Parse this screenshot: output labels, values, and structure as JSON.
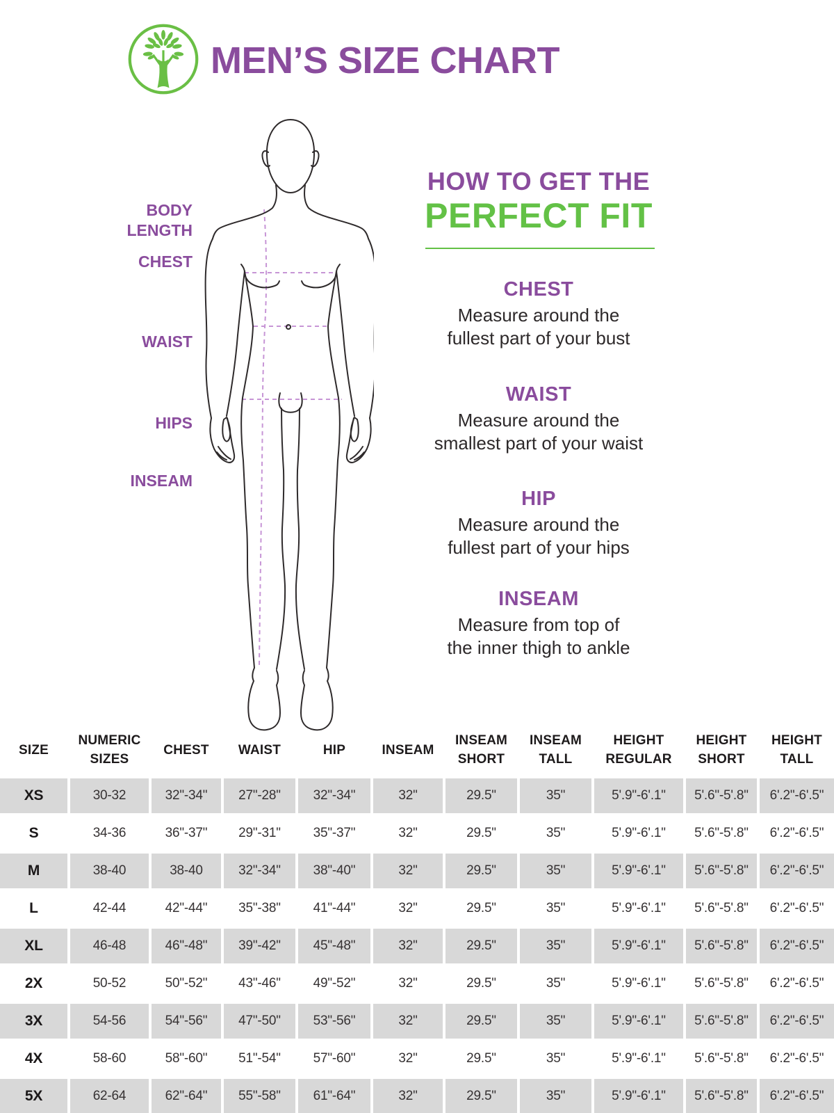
{
  "colors": {
    "purple": "#8a4c9d",
    "green": "#63c146",
    "logo_green": "#6abf45",
    "dashed_line": "#c795d6",
    "figure_stroke": "#2e2a2b",
    "row_gray": "#d8d8d8"
  },
  "header": {
    "logo_icon": "tree-icon",
    "title": "MEN’S SIZE CHART"
  },
  "figure": {
    "labels": {
      "body_length": "BODY\nLENGTH",
      "chest": "CHEST",
      "waist": "WAIST",
      "hips": "HIPS",
      "inseam": "INSEAM"
    }
  },
  "fit_guide": {
    "title_line1": "HOW TO GET THE",
    "title_line2": "PERFECT FIT",
    "sections": [
      {
        "heading": "CHEST",
        "text": "Measure around the\nfullest part of your bust"
      },
      {
        "heading": "WAIST",
        "text": "Measure around the\nsmallest part of your waist"
      },
      {
        "heading": "HIP",
        "text": "Measure around the\nfullest part of your hips"
      },
      {
        "heading": "INSEAM",
        "text": "Measure from top of\nthe inner thigh to ankle"
      }
    ]
  },
  "table": {
    "columns": [
      "SIZE",
      "NUMERIC\nSIZES",
      "CHEST",
      "WAIST",
      "HIP",
      "INSEAM",
      "INSEAM\nSHORT",
      "INSEAM\nTALL",
      "HEIGHT\nREGULAR",
      "HEIGHT\nSHORT",
      "HEIGHT\nTALL"
    ],
    "rows": [
      {
        "size": "XS",
        "values": [
          "30-32",
          "32\"-34\"",
          "27\"-28\"",
          "32\"-34\"",
          "32\"",
          "29.5\"",
          "35\"",
          "5'.9\"-6'.1\"",
          "5'.6\"-5'.8\"",
          "6'.2\"-6'.5\""
        ]
      },
      {
        "size": "S",
        "values": [
          "34-36",
          "36\"-37\"",
          "29\"-31\"",
          "35\"-37\"",
          "32\"",
          "29.5\"",
          "35\"",
          "5'.9\"-6'.1\"",
          "5'.6\"-5'.8\"",
          "6'.2\"-6'.5\""
        ]
      },
      {
        "size": "M",
        "values": [
          "38-40",
          "38-40",
          "32\"-34\"",
          "38\"-40\"",
          "32\"",
          "29.5\"",
          "35\"",
          "5'.9\"-6'.1\"",
          "5'.6\"-5'.8\"",
          "6'.2\"-6'.5\""
        ]
      },
      {
        "size": "L",
        "values": [
          "42-44",
          "42\"-44\"",
          "35\"-38\"",
          "41\"-44\"",
          "32\"",
          "29.5\"",
          "35\"",
          "5'.9\"-6'.1\"",
          "5'.6\"-5'.8\"",
          "6'.2\"-6'.5\""
        ]
      },
      {
        "size": "XL",
        "values": [
          "46-48",
          "46\"-48\"",
          "39\"-42\"",
          "45\"-48\"",
          "32\"",
          "29.5\"",
          "35\"",
          "5'.9\"-6'.1\"",
          "5'.6\"-5'.8\"",
          "6'.2\"-6'.5\""
        ]
      },
      {
        "size": "2X",
        "values": [
          "50-52",
          "50\"-52\"",
          "43\"-46\"",
          "49\"-52\"",
          "32\"",
          "29.5\"",
          "35\"",
          "5'.9\"-6'.1\"",
          "5'.6\"-5'.8\"",
          "6'.2\"-6'.5\""
        ]
      },
      {
        "size": "3X",
        "values": [
          "54-56",
          "54\"-56\"",
          "47\"-50\"",
          "53\"-56\"",
          "32\"",
          "29.5\"",
          "35\"",
          "5'.9\"-6'.1\"",
          "5'.6\"-5'.8\"",
          "6'.2\"-6'.5\""
        ]
      },
      {
        "size": "4X",
        "values": [
          "58-60",
          "58\"-60\"",
          "51\"-54\"",
          "57\"-60\"",
          "32\"",
          "29.5\"",
          "35\"",
          "5'.9\"-6'.1\"",
          "5'.6\"-5'.8\"",
          "6'.2\"-6'.5\""
        ]
      },
      {
        "size": "5X",
        "values": [
          "62-64",
          "62\"-64\"",
          "55\"-58\"",
          "61\"-64\"",
          "32\"",
          "29.5\"",
          "35\"",
          "5'.9\"-6'.1\"",
          "5'.6\"-5'.8\"",
          "6'.2\"-6'.5\""
        ]
      }
    ]
  }
}
